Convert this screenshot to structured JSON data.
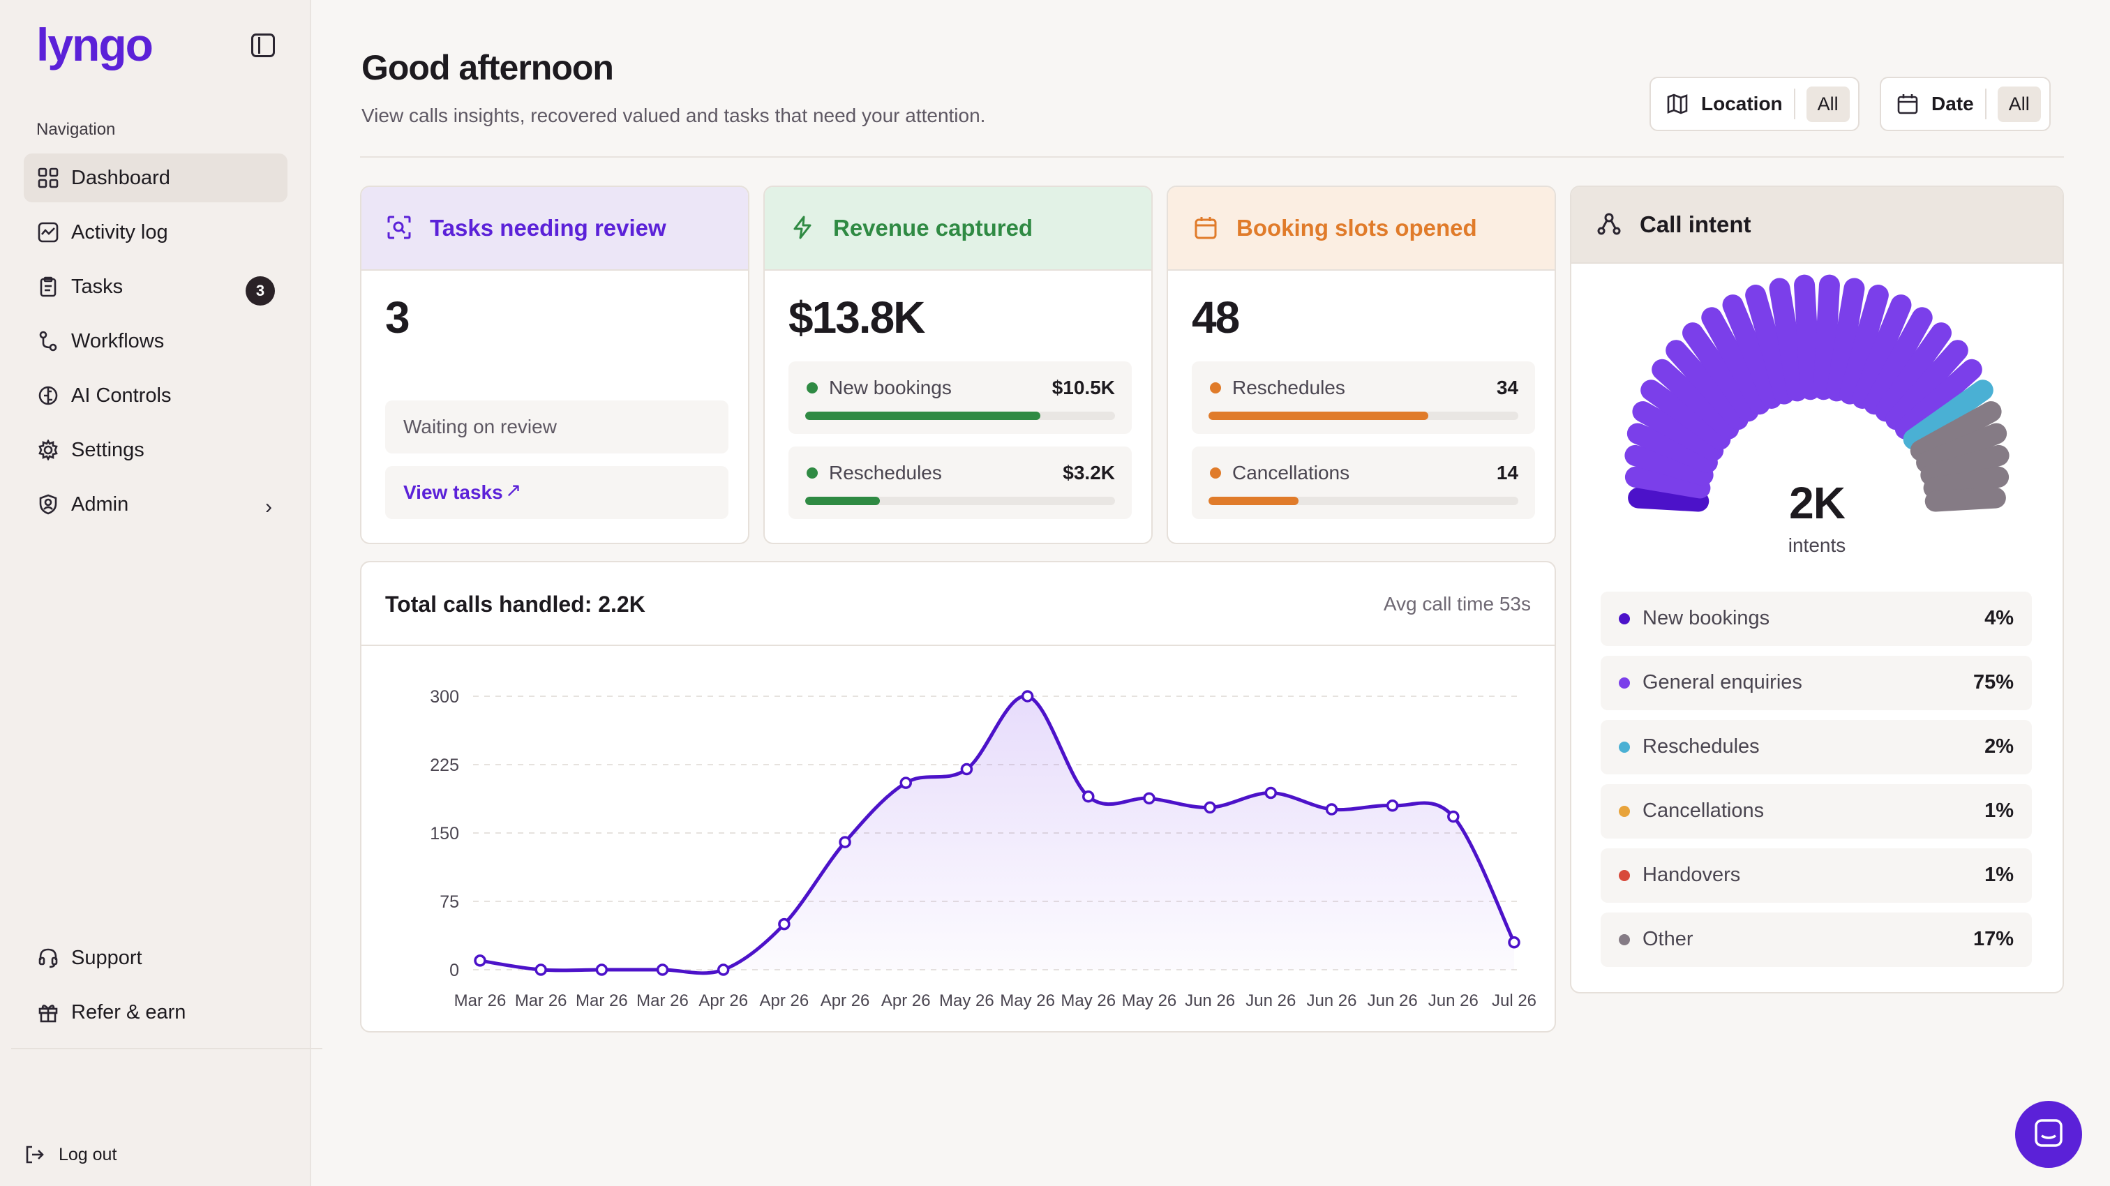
{
  "app": {
    "logo": "lyngo"
  },
  "sidebar": {
    "heading": "Navigation",
    "items": [
      {
        "label": "Dashboard",
        "icon": "grid-icon",
        "active": true
      },
      {
        "label": "Activity log",
        "icon": "activity-icon"
      },
      {
        "label": "Tasks",
        "icon": "clipboard-icon",
        "badge": "3"
      },
      {
        "label": "Workflows",
        "icon": "workflow-icon"
      },
      {
        "label": "AI Controls",
        "icon": "ai-icon"
      },
      {
        "label": "Settings",
        "icon": "gear-icon"
      },
      {
        "label": "Admin",
        "icon": "shield-user-icon"
      }
    ],
    "bottom": [
      {
        "label": "Support",
        "icon": "headset-icon"
      },
      {
        "label": "Refer & earn",
        "icon": "gift-icon"
      }
    ],
    "logout": "Log out"
  },
  "header": {
    "greeting": "Good afternoon",
    "subtitle": "View calls insights, recovered valued and tasks that need your attention.",
    "filters": [
      {
        "label": "Location",
        "value": "All",
        "icon": "map-icon"
      },
      {
        "label": "Date",
        "value": "All",
        "icon": "calendar-icon"
      }
    ]
  },
  "cards": {
    "tasks": {
      "title": "Tasks needing review",
      "value": "3",
      "status": "Waiting on review",
      "link": "View tasks",
      "color": "#5b21d8",
      "bg": "#ece6f7"
    },
    "revenue": {
      "title": "Revenue captured",
      "value": "$13.8K",
      "color": "#2f8a43",
      "bg": "#e2f2e6",
      "rows": [
        {
          "label": "New bookings",
          "value": "$10.5K",
          "fraction": 0.76
        },
        {
          "label": "Reschedules",
          "value": "$3.2K",
          "fraction": 0.24
        }
      ]
    },
    "booking": {
      "title": "Booking slots opened",
      "value": "48",
      "color": "#e07b2a",
      "bg": "#fbeee2",
      "rows": [
        {
          "label": "Reschedules",
          "value": "34",
          "fraction": 0.71
        },
        {
          "label": "Cancellations",
          "value": "14",
          "fraction": 0.29
        }
      ]
    }
  },
  "calls": {
    "title": "Total calls handled: 2.2K",
    "avg": "Avg call time 53s"
  },
  "intent": {
    "title": "Call intent",
    "total": "2K",
    "unit": "intents",
    "items": [
      {
        "label": "New bookings",
        "value": "4%",
        "pct": 4,
        "color": "#4c12c9"
      },
      {
        "label": "General enquiries",
        "value": "75%",
        "pct": 75,
        "color": "#7b3fea"
      },
      {
        "label": "Reschedules",
        "value": "2%",
        "pct": 2,
        "color": "#4ab0d4"
      },
      {
        "label": "Cancellations",
        "value": "1%",
        "pct": 1,
        "color": "#e8a33a"
      },
      {
        "label": "Handovers",
        "value": "1%",
        "pct": 1,
        "color": "#d8493a"
      },
      {
        "label": "Other",
        "value": "17%",
        "pct": 17,
        "color": "#857b85"
      }
    ]
  },
  "chart_data": {
    "type": "line",
    "x": [
      "Mar 26",
      "Mar 26",
      "Mar 26",
      "Mar 26",
      "Apr 26",
      "Apr 26",
      "Apr 26",
      "Apr 26",
      "May 26",
      "May 26",
      "May 26",
      "May 26",
      "Jun 26",
      "Jun 26",
      "Jun 26",
      "Jun 26",
      "Jun 26",
      "Jul 26"
    ],
    "series": [
      {
        "values": [
          10,
          0,
          0,
          0,
          0,
          50,
          140,
          205,
          220,
          300,
          190,
          188,
          178,
          194,
          176,
          180,
          168,
          30
        ]
      }
    ],
    "yticks": [
      0,
      75,
      150,
      225,
      300
    ],
    "ylim": [
      0,
      300
    ],
    "grid": true,
    "color": "#4c12c9"
  }
}
